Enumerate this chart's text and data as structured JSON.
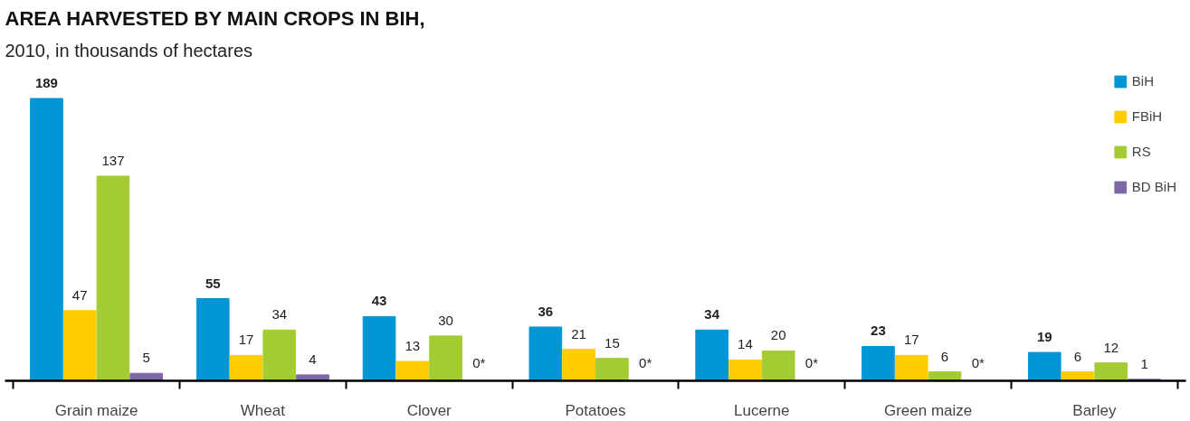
{
  "chart_data": {
    "type": "bar",
    "title": "AREA HARVESTED BY MAIN  CROPS IN BIH,",
    "subtitle": "2010, in thousands of hectares",
    "categories": [
      "Grain maize",
      "Wheat",
      "Clover",
      "Potatoes",
      "Lucerne",
      "Green maize",
      "Barley"
    ],
    "series": [
      {
        "name": "BiH",
        "color": "#0096d6",
        "values": [
          189,
          55,
          43,
          36,
          34,
          23,
          19
        ],
        "value_labels": [
          "189",
          "55",
          "43",
          "36",
          "34",
          "23",
          "19"
        ]
      },
      {
        "name": "FBiH",
        "color": "#ffcc00",
        "values": [
          47,
          17,
          13,
          21,
          14,
          17,
          6
        ],
        "value_labels": [
          "47",
          "17",
          "13",
          "21",
          "14",
          "17",
          "6"
        ]
      },
      {
        "name": "RS",
        "color": "#a3cc33",
        "values": [
          137,
          34,
          30,
          15,
          20,
          6,
          12
        ],
        "value_labels": [
          "137",
          "34",
          "30",
          "15",
          "20",
          "6",
          "12"
        ]
      },
      {
        "name": "BD BiH",
        "color": "#7e67a8",
        "values": [
          5,
          4,
          0,
          0,
          0,
          0,
          1
        ],
        "value_labels": [
          "5",
          "4",
          "0*",
          "0*",
          "0*",
          "0*",
          "1"
        ]
      }
    ],
    "legend": "top right",
    "grid": false
  }
}
